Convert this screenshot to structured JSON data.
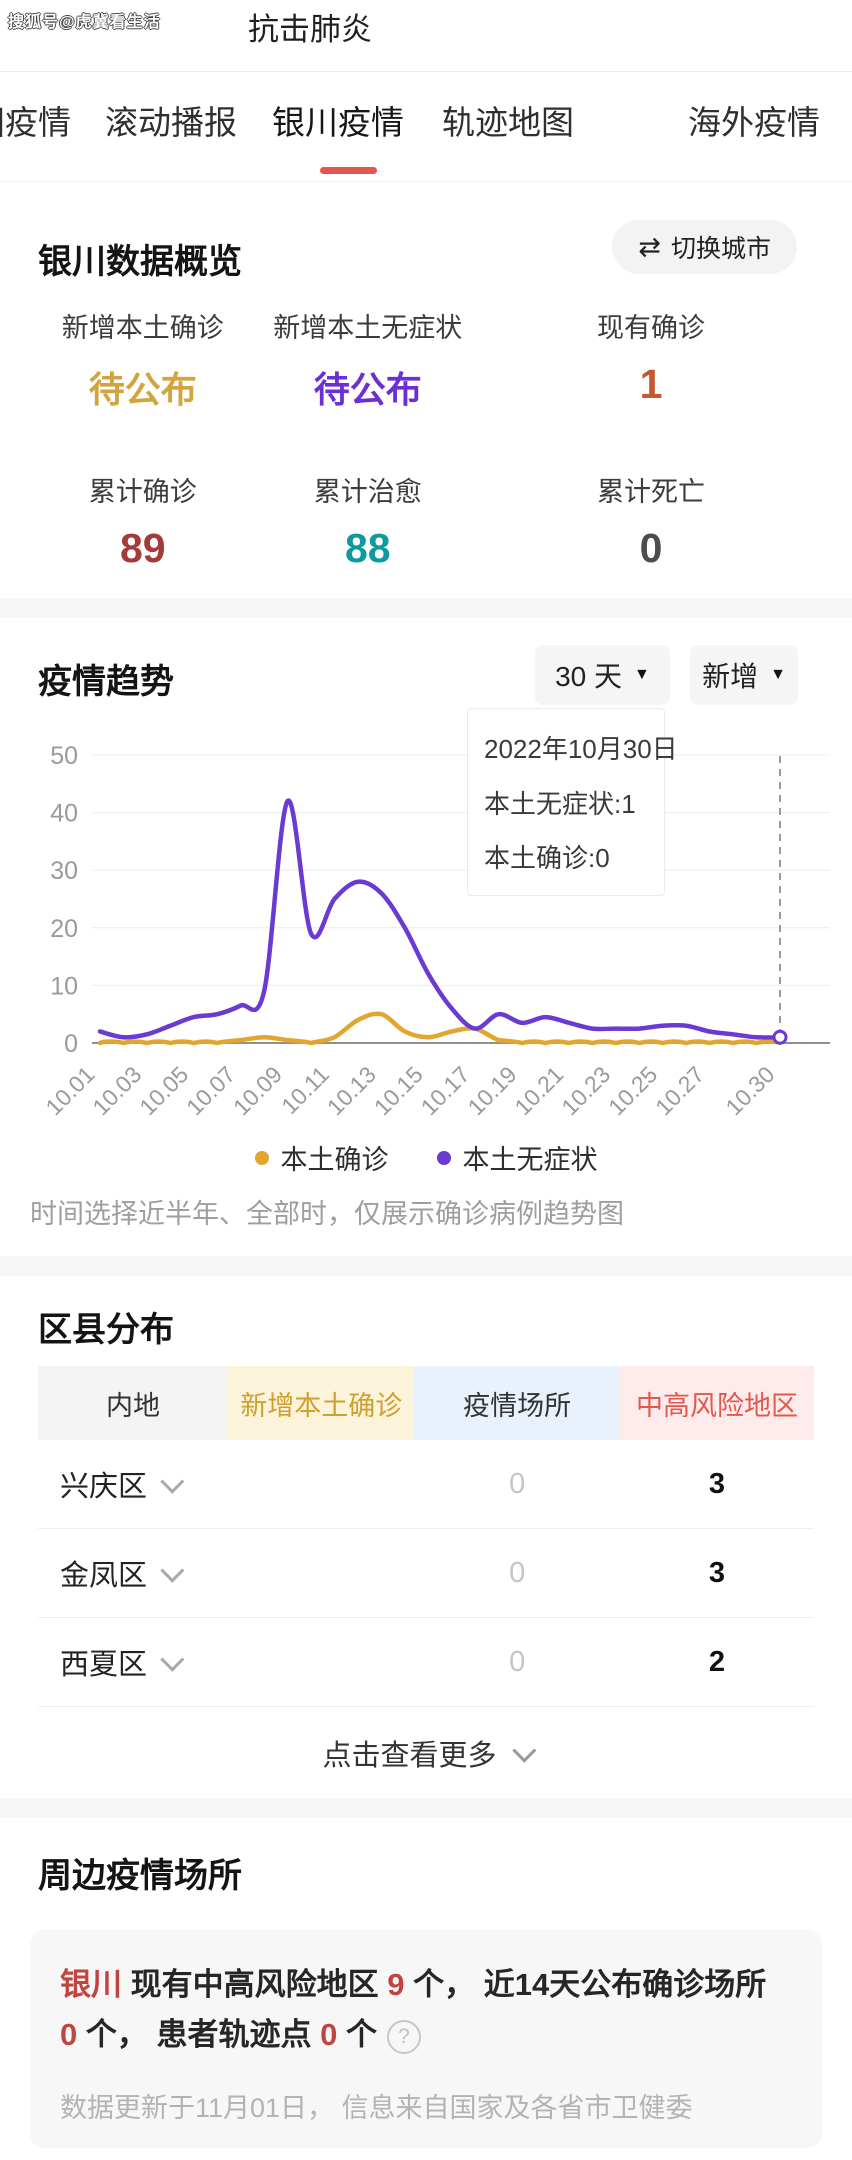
{
  "watermark": "搜狐号@虎冀看生活",
  "title": "抗击肺炎",
  "colors": {
    "accent_red": "#e5574e",
    "chart_orange": "#e3a52f",
    "chart_purple": "#6a3bd3",
    "pending_gold": "#d2a53c",
    "pending_purple": "#6b2fd5",
    "active_orange": "#c65a2e",
    "cumulative_red": "#a33b3b",
    "cured_teal": "#0f9b9b",
    "death_gray": "#4d4d4d",
    "summary_red": "#c04540"
  },
  "tabs": {
    "items": [
      {
        "label": "全国疫情",
        "active": false
      },
      {
        "label": "滚动播报",
        "active": false
      },
      {
        "label": "银川疫情",
        "active": true
      },
      {
        "label": "轨迹地图",
        "active": false
      },
      {
        "label": "海外疫情",
        "active": false
      }
    ]
  },
  "overview": {
    "heading": "银川数据概览",
    "switch_city": {
      "icon": "⇄",
      "label": "切换城市"
    },
    "stats_row1": [
      {
        "label": "新增本土确诊",
        "value": "待公布",
        "color": "#d2a53c"
      },
      {
        "label": "新增本土无症状",
        "value": "待公布",
        "color": "#6b2fd5"
      },
      {
        "label": "现有确诊",
        "value": "1",
        "color": "#c65a2e"
      }
    ],
    "stats_row2": [
      {
        "label": "累计确诊",
        "value": "89",
        "color": "#a33b3b"
      },
      {
        "label": "累计治愈",
        "value": "88",
        "color": "#0f9b9b"
      },
      {
        "label": "累计死亡",
        "value": "0",
        "color": "#4d4d4d"
      }
    ]
  },
  "trend": {
    "heading": "疫情趋势",
    "range_dropdown": "30 天",
    "type_dropdown": "新增",
    "dropdown_caret": "▼",
    "tooltip": {
      "date": "2022年10月30日",
      "line1": "本土无症状:1",
      "line2": "本土确诊:0"
    },
    "legend": [
      {
        "label": "本土确诊",
        "color": "#e3a52f"
      },
      {
        "label": "本土无症状",
        "color": "#6a3bd3"
      }
    ],
    "footnote": "时间选择近半年、全部时，仅展示确诊病例趋势图"
  },
  "chart_data": {
    "type": "line",
    "x": [
      "10.01",
      "10.02",
      "10.03",
      "10.04",
      "10.05",
      "10.06",
      "10.07",
      "10.08",
      "10.09",
      "10.10",
      "10.11",
      "10.12",
      "10.13",
      "10.14",
      "10.15",
      "10.16",
      "10.17",
      "10.18",
      "10.19",
      "10.20",
      "10.21",
      "10.22",
      "10.23",
      "10.24",
      "10.25",
      "10.26",
      "10.27",
      "10.28",
      "10.29",
      "10.30"
    ],
    "series": [
      {
        "name": "本土确诊",
        "color": "#e3a52f",
        "values": [
          0,
          0,
          0,
          0,
          0,
          0,
          0.5,
          1,
          0.5,
          0,
          1,
          4,
          5,
          2,
          1,
          2,
          2.5,
          0.5,
          0,
          0,
          0,
          0,
          0,
          0,
          0,
          0,
          0,
          0,
          0,
          0
        ]
      },
      {
        "name": "本土无症状",
        "color": "#6a3bd3",
        "values": [
          2,
          1,
          1.5,
          3,
          4.5,
          5,
          6.5,
          9,
          42,
          19,
          25,
          28,
          26,
          20,
          12,
          6,
          2.5,
          5,
          3.5,
          4.5,
          3.5,
          2.5,
          2.5,
          2.5,
          3,
          3,
          2,
          1.5,
          1,
          1
        ]
      }
    ],
    "ylim": [
      0,
      50
    ],
    "yticks": [
      0,
      10,
      20,
      30,
      40,
      50
    ],
    "shown_x_ticks": [
      0,
      2,
      4,
      6,
      8,
      10,
      12,
      14,
      16,
      18,
      20,
      22,
      24,
      26,
      29
    ],
    "highlight_x": "10.30",
    "grid": true,
    "legend_position": "bottom",
    "title": "疫情趋势",
    "xlabel": "",
    "ylabel": ""
  },
  "districts": {
    "heading": "区县分布",
    "table": {
      "columns": [
        {
          "label": "内地",
          "bg": "#f4f4f4",
          "color": "#333333"
        },
        {
          "label": "新增本土确诊",
          "bg": "#fbf4da",
          "color": "#cfa030"
        },
        {
          "label": "疫情场所",
          "bg": "#e9f2fc",
          "color": "#333333"
        },
        {
          "label": "中高风险地区",
          "bg": "#fdeceb",
          "color": "#e4574d"
        }
      ],
      "rows": [
        {
          "name": "兴庆区",
          "new_local": "",
          "venues": "0",
          "risk": "3"
        },
        {
          "name": "金凤区",
          "new_local": "",
          "venues": "0",
          "risk": "3"
        },
        {
          "name": "西夏区",
          "new_local": "",
          "venues": "0",
          "risk": "2"
        }
      ]
    },
    "more_label": "点击查看更多"
  },
  "places": {
    "heading": "周边疫情场所",
    "summary_segments": [
      {
        "text": "银川",
        "red": true
      },
      {
        "text": " 现有中高风险地区 ",
        "red": false
      },
      {
        "text": "9",
        "red": true
      },
      {
        "text": " 个， 近14天公布确诊场所 ",
        "red": false
      },
      {
        "text": "0",
        "red": true
      },
      {
        "text": " 个， 患者轨迹点 ",
        "red": false
      },
      {
        "text": "0",
        "red": true
      },
      {
        "text": " 个",
        "red": false
      }
    ],
    "help_icon": "?",
    "update_note": "数据更新于11月01日， 信息来自国家及各省市卫健委"
  }
}
